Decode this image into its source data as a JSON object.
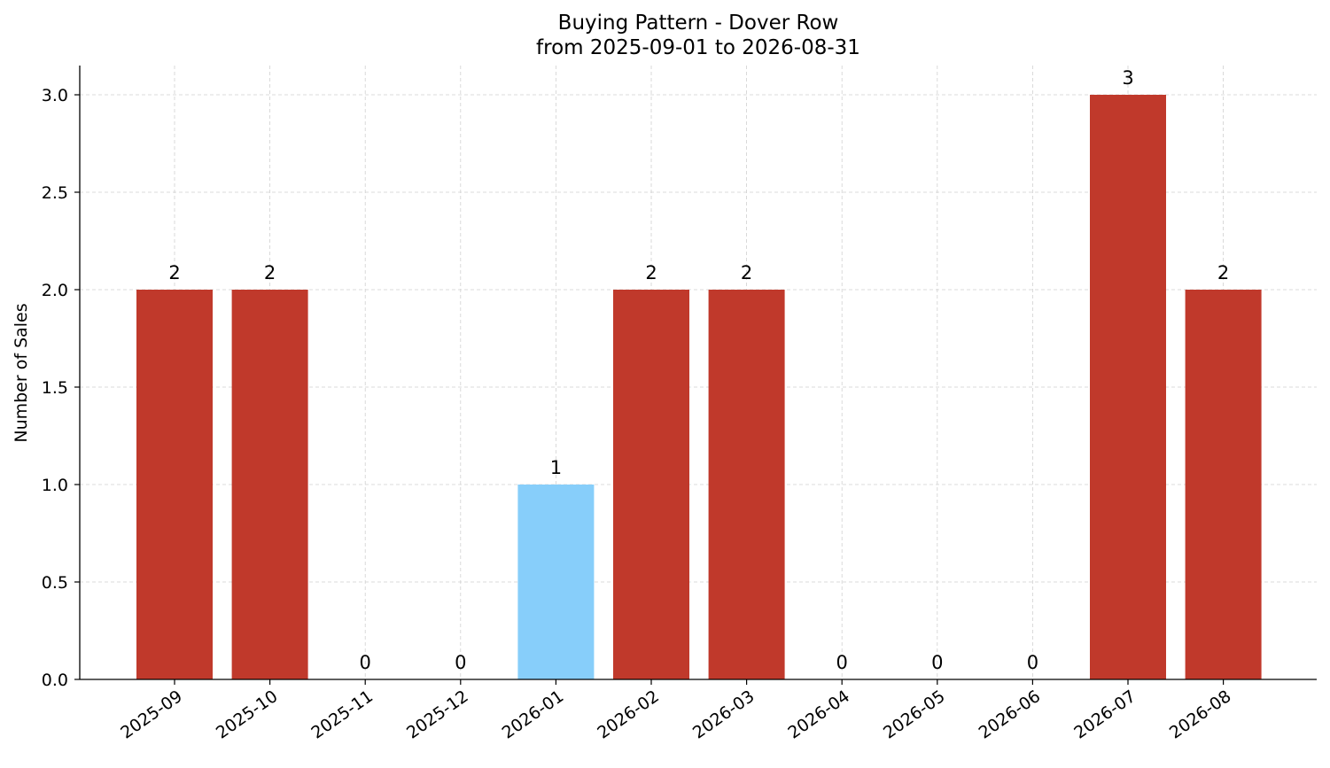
{
  "chart_data": {
    "type": "bar",
    "title": "Buying Pattern - Dover Row",
    "subtitle": "from 2025-09-01 to 2026-08-31",
    "xlabel": "",
    "ylabel": "Number of Sales",
    "categories": [
      "2025-09",
      "2025-10",
      "2025-11",
      "2025-12",
      "2026-01",
      "2026-02",
      "2026-03",
      "2026-04",
      "2026-05",
      "2026-06",
      "2026-07",
      "2026-08"
    ],
    "values": [
      2,
      2,
      0,
      0,
      1,
      2,
      2,
      0,
      0,
      0,
      3,
      2
    ],
    "data_labels": [
      "2",
      "2",
      "0",
      "0",
      "1",
      "2",
      "2",
      "0",
      "0",
      "0",
      "3",
      "2"
    ],
    "bar_colors": [
      "#c0392b",
      "#c0392b",
      "#c0392b",
      "#c0392b",
      "#87cefa",
      "#c0392b",
      "#c0392b",
      "#c0392b",
      "#c0392b",
      "#c0392b",
      "#c0392b",
      "#c0392b"
    ],
    "ylim": [
      0,
      3.15
    ],
    "yticks": [
      0,
      0.5,
      1,
      1.5,
      2,
      2.5,
      3
    ],
    "ytick_labels": [
      "0.0",
      "0.5",
      "1.0",
      "1.5",
      "2.0",
      "2.5",
      "3.0"
    ],
    "grid": true,
    "legend": "none"
  }
}
